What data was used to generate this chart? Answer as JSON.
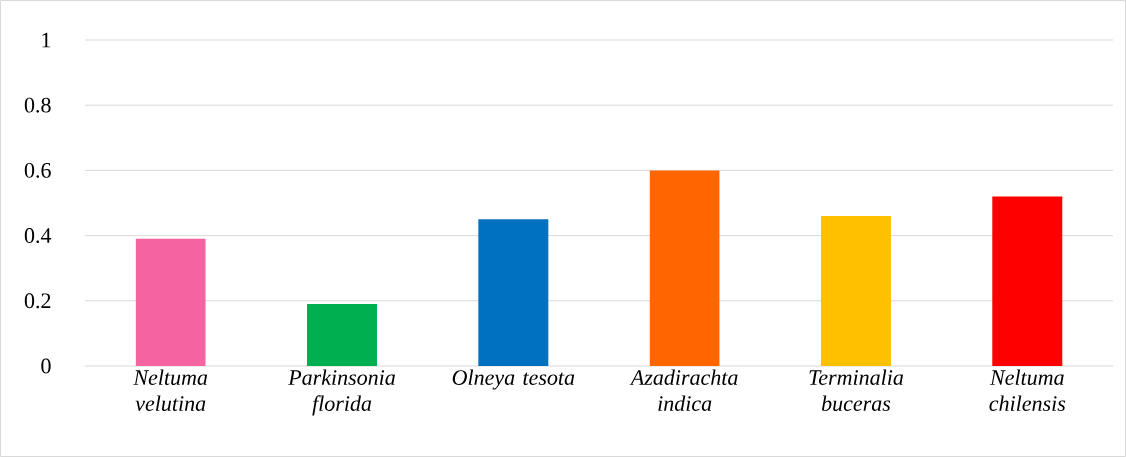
{
  "chart_data": {
    "type": "bar",
    "categories": [
      "Neltuma velutina",
      "Parkinsonia florida",
      "Olneya tesota",
      "Azadirachta indica",
      "Terminalia buceras",
      "Neltuma chilensis"
    ],
    "values": [
      0.39,
      0.19,
      0.45,
      0.6,
      0.46,
      0.52
    ],
    "colors": [
      "#f564a0",
      "#00b050",
      "#0070c0",
      "#ff6600",
      "#ffc000",
      "#ff0000"
    ],
    "ylim": [
      0,
      1
    ],
    "yticks": [
      0,
      0.2,
      0.4,
      0.6,
      0.8,
      1
    ],
    "grid": "y"
  }
}
